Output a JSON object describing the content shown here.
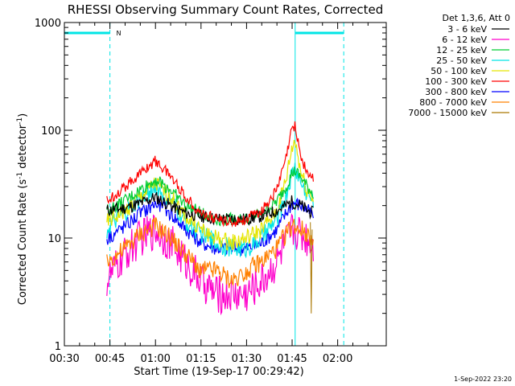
{
  "chart_data": {
    "type": "line",
    "title": "RHESSI Observing Summary Count Rates, Corrected",
    "xlabel": "Start Time (19-Sep-17 00:29:42)",
    "ylabel_main": "Corrected Count Rate (s",
    "ylabel_sup1": "-1",
    "ylabel_mid": " detector",
    "ylabel_sup2": "-1",
    "ylabel_end": ")",
    "y_scale": "log",
    "ylim": [
      1,
      1000
    ],
    "xlim_min": [
      30,
      136
    ],
    "x_ticks": [
      {
        "min": 30,
        "label": "00:30"
      },
      {
        "min": 45,
        "label": "00:45"
      },
      {
        "min": 60,
        "label": "01:00"
      },
      {
        "min": 75,
        "label": "01:15"
      },
      {
        "min": 90,
        "label": "01:30"
      },
      {
        "min": 105,
        "label": "01:45"
      },
      {
        "min": 120,
        "label": "02:00"
      }
    ],
    "y_ticks": [
      {
        "value": 1,
        "label": "1"
      },
      {
        "value": 10,
        "label": "10"
      },
      {
        "value": 100,
        "label": "100"
      },
      {
        "value": 1000,
        "label": "1000"
      }
    ],
    "legend_header": "Det 1,3,6, Att 0",
    "legend_position": "right",
    "series": [
      {
        "name": "3 - 6 keV",
        "color": "#000000",
        "x": [
          44,
          50,
          55,
          60,
          65,
          70,
          75,
          80,
          85,
          90,
          95,
          100,
          103,
          105,
          106,
          108,
          110,
          112
        ],
        "y": [
          18,
          19,
          21,
          24,
          20,
          17,
          16,
          15,
          15,
          15,
          16,
          18,
          20,
          22,
          21,
          20,
          18,
          17
        ]
      },
      {
        "name": "6 - 12 keV",
        "color": "#ff00cc",
        "x": [
          44,
          50,
          55,
          60,
          65,
          70,
          75,
          80,
          85,
          90,
          95,
          100,
          103,
          105,
          106,
          108,
          110,
          112
        ],
        "y": [
          4,
          7,
          10,
          12,
          9,
          6,
          4,
          3,
          3,
          3,
          4,
          6,
          9,
          12,
          12,
          11,
          10,
          9
        ]
      },
      {
        "name": "12 - 25 keV",
        "color": "#00cc33",
        "x": [
          44,
          50,
          55,
          60,
          65,
          70,
          75,
          80,
          85,
          90,
          95,
          100,
          103,
          105,
          106,
          108,
          110,
          112
        ],
        "y": [
          18,
          22,
          28,
          35,
          28,
          20,
          17,
          15,
          15,
          15,
          17,
          22,
          30,
          40,
          42,
          36,
          30,
          26
        ]
      },
      {
        "name": "25 - 50 keV",
        "color": "#00e5e5",
        "x": [
          44,
          50,
          55,
          60,
          65,
          70,
          75,
          80,
          85,
          90,
          95,
          100,
          103,
          105,
          106,
          108,
          110,
          112
        ],
        "y": [
          12,
          17,
          23,
          30,
          22,
          14,
          11,
          9,
          8,
          8,
          10,
          15,
          25,
          40,
          45,
          32,
          26,
          22
        ]
      },
      {
        "name": "50 - 100 keV",
        "color": "#e5e500",
        "x": [
          44,
          50,
          55,
          60,
          65,
          70,
          75,
          80,
          85,
          90,
          95,
          100,
          103,
          105,
          106,
          108,
          110,
          112
        ],
        "y": [
          14,
          18,
          24,
          32,
          24,
          16,
          12,
          10,
          9,
          10,
          12,
          18,
          35,
          70,
          80,
          40,
          28,
          24
        ]
      },
      {
        "name": "100 - 300 keV",
        "color": "#ff0000",
        "x": [
          44,
          50,
          55,
          60,
          65,
          70,
          75,
          80,
          85,
          90,
          95,
          100,
          103,
          105,
          106,
          108,
          110,
          112
        ],
        "y": [
          22,
          30,
          40,
          52,
          38,
          24,
          17,
          15,
          14,
          15,
          18,
          28,
          55,
          105,
          110,
          55,
          40,
          35
        ]
      },
      {
        "name": "300 - 800 keV",
        "color": "#0000ff",
        "x": [
          44,
          50,
          55,
          60,
          65,
          70,
          75,
          80,
          85,
          90,
          95,
          100,
          103,
          105,
          106,
          108,
          110,
          112
        ],
        "y": [
          10,
          13,
          17,
          21,
          17,
          12,
          9,
          8,
          8,
          8,
          9,
          12,
          17,
          21,
          21,
          20,
          18,
          16
        ]
      },
      {
        "name": "800 - 7000 keV",
        "color": "#ff8000",
        "x": [
          44,
          50,
          55,
          60,
          65,
          70,
          75,
          80,
          85,
          90,
          95,
          100,
          103,
          105,
          106,
          108,
          110,
          112
        ],
        "y": [
          6,
          8,
          11,
          13,
          10,
          7,
          5,
          5,
          4,
          5,
          6,
          8,
          11,
          13,
          13,
          12,
          11,
          10
        ]
      },
      {
        "name": "7000 - 15000 keV",
        "color": "#aa7700",
        "x": [
          111,
          111.3,
          111.6
        ],
        "y": [
          14,
          2,
          12
        ]
      }
    ],
    "attenuator_bar": {
      "level": 800,
      "segments": [
        [
          30,
          45
        ],
        [
          106,
          122
        ]
      ],
      "marker_text": "N",
      "marker_at": 45.5,
      "color": "#00e5e5"
    },
    "vertical_lines": [
      {
        "at": 30,
        "style": "solid"
      },
      {
        "at": 45,
        "style": "dashed"
      },
      {
        "at": 106,
        "style": "solid"
      },
      {
        "at": 122,
        "style": "dashed"
      }
    ],
    "footer_date": "1-Sep-2022 23:20"
  }
}
